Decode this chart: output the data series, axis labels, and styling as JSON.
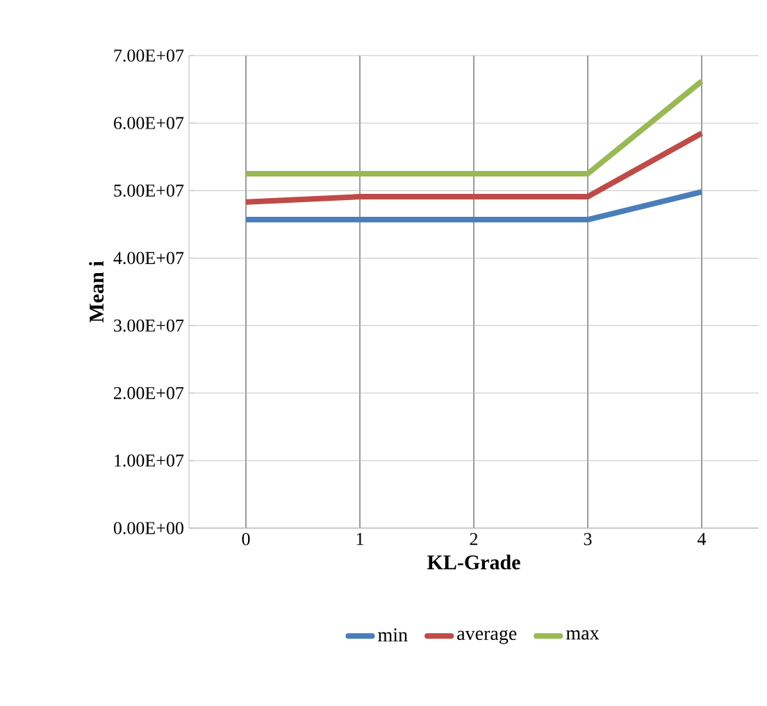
{
  "chart_data": {
    "type": "line",
    "xlabel": "KL-Grade",
    "ylabel": "Mean i",
    "categories": [
      "0",
      "1",
      "2",
      "3",
      "4"
    ],
    "series": [
      {
        "name": "min",
        "color": "#4a7ebb",
        "values": [
          45700000,
          45700000,
          45700000,
          45700000,
          49800000
        ]
      },
      {
        "name": "average",
        "color": "#be4b48",
        "values": [
          48300000,
          49100000,
          49100000,
          49100000,
          58500000
        ]
      },
      {
        "name": "max",
        "color": "#98b954",
        "values": [
          52500000,
          52500000,
          52500000,
          52500000,
          66200000
        ]
      }
    ],
    "ylim": [
      0,
      70000000
    ],
    "yticks": [
      {
        "value": 0,
        "label": "0.00E+00"
      },
      {
        "value": 10000000,
        "label": "1.00E+07"
      },
      {
        "value": 20000000,
        "label": "2.00E+07"
      },
      {
        "value": 30000000,
        "label": "3.00E+07"
      },
      {
        "value": 40000000,
        "label": "4.00E+07"
      },
      {
        "value": 50000000,
        "label": "5.00E+07"
      },
      {
        "value": 60000000,
        "label": "6.00E+07"
      },
      {
        "value": 70000000,
        "label": "7.00E+07"
      }
    ],
    "grid": true,
    "legend": "bottom",
    "marker": "none",
    "line_style": "solid"
  }
}
